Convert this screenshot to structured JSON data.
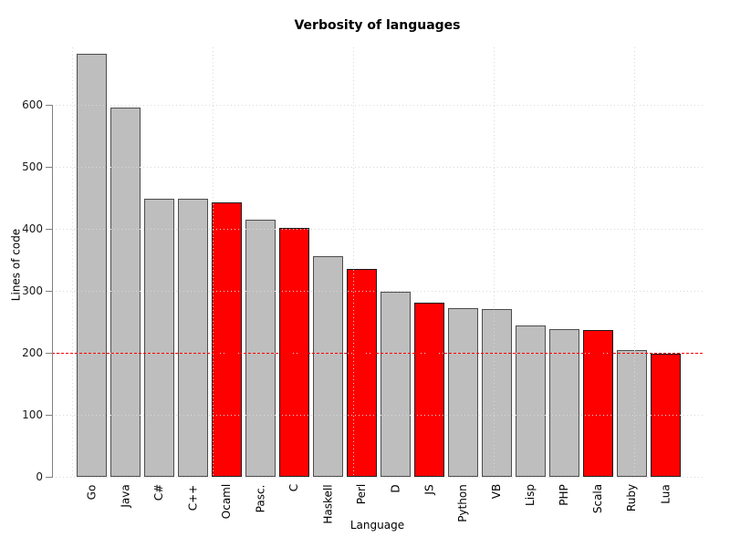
{
  "chart_data": {
    "type": "bar",
    "title": "Verbosity of languages",
    "xlabel": "Language",
    "ylabel": "Lines of code",
    "categories": [
      "Go",
      "Java",
      "C#",
      "C++",
      "Ocaml",
      "Pasc.",
      "C",
      "Haskell",
      "Perl",
      "D",
      "JS",
      "Python",
      "VB",
      "Lisp",
      "PHP",
      "Scala",
      "Ruby",
      "Lua"
    ],
    "values": [
      683,
      595,
      448,
      448,
      442,
      415,
      402,
      356,
      336,
      299,
      281,
      272,
      271,
      244,
      238,
      237,
      205,
      199
    ],
    "bar_colors": [
      "#bebebe",
      "#bebebe",
      "#bebebe",
      "#bebebe",
      "#ff0000",
      "#bebebe",
      "#ff0000",
      "#bebebe",
      "#ff0000",
      "#bebebe",
      "#ff0000",
      "#bebebe",
      "#bebebe",
      "#bebebe",
      "#bebebe",
      "#ff0000",
      "#bebebe",
      "#ff0000"
    ],
    "highlighted_categories": [
      "Ocaml",
      "C",
      "Perl",
      "JS",
      "Scala",
      "Lua"
    ],
    "default_bar_color": "#bebebe",
    "highlight_color": "#ff0000",
    "bar_border_color": "#4d4d4d",
    "highlight_border_color": "#1a1a1a",
    "yticks": [
      0,
      100,
      200,
      300,
      400,
      500,
      600
    ],
    "ylim": [
      0,
      700
    ],
    "grid": true,
    "gridline_color": "#d9d9d9",
    "axis_color": "#808080",
    "reference_line": {
      "value": 200,
      "color": "#ff0000",
      "style": "dashed"
    },
    "legend_position": "none"
  }
}
